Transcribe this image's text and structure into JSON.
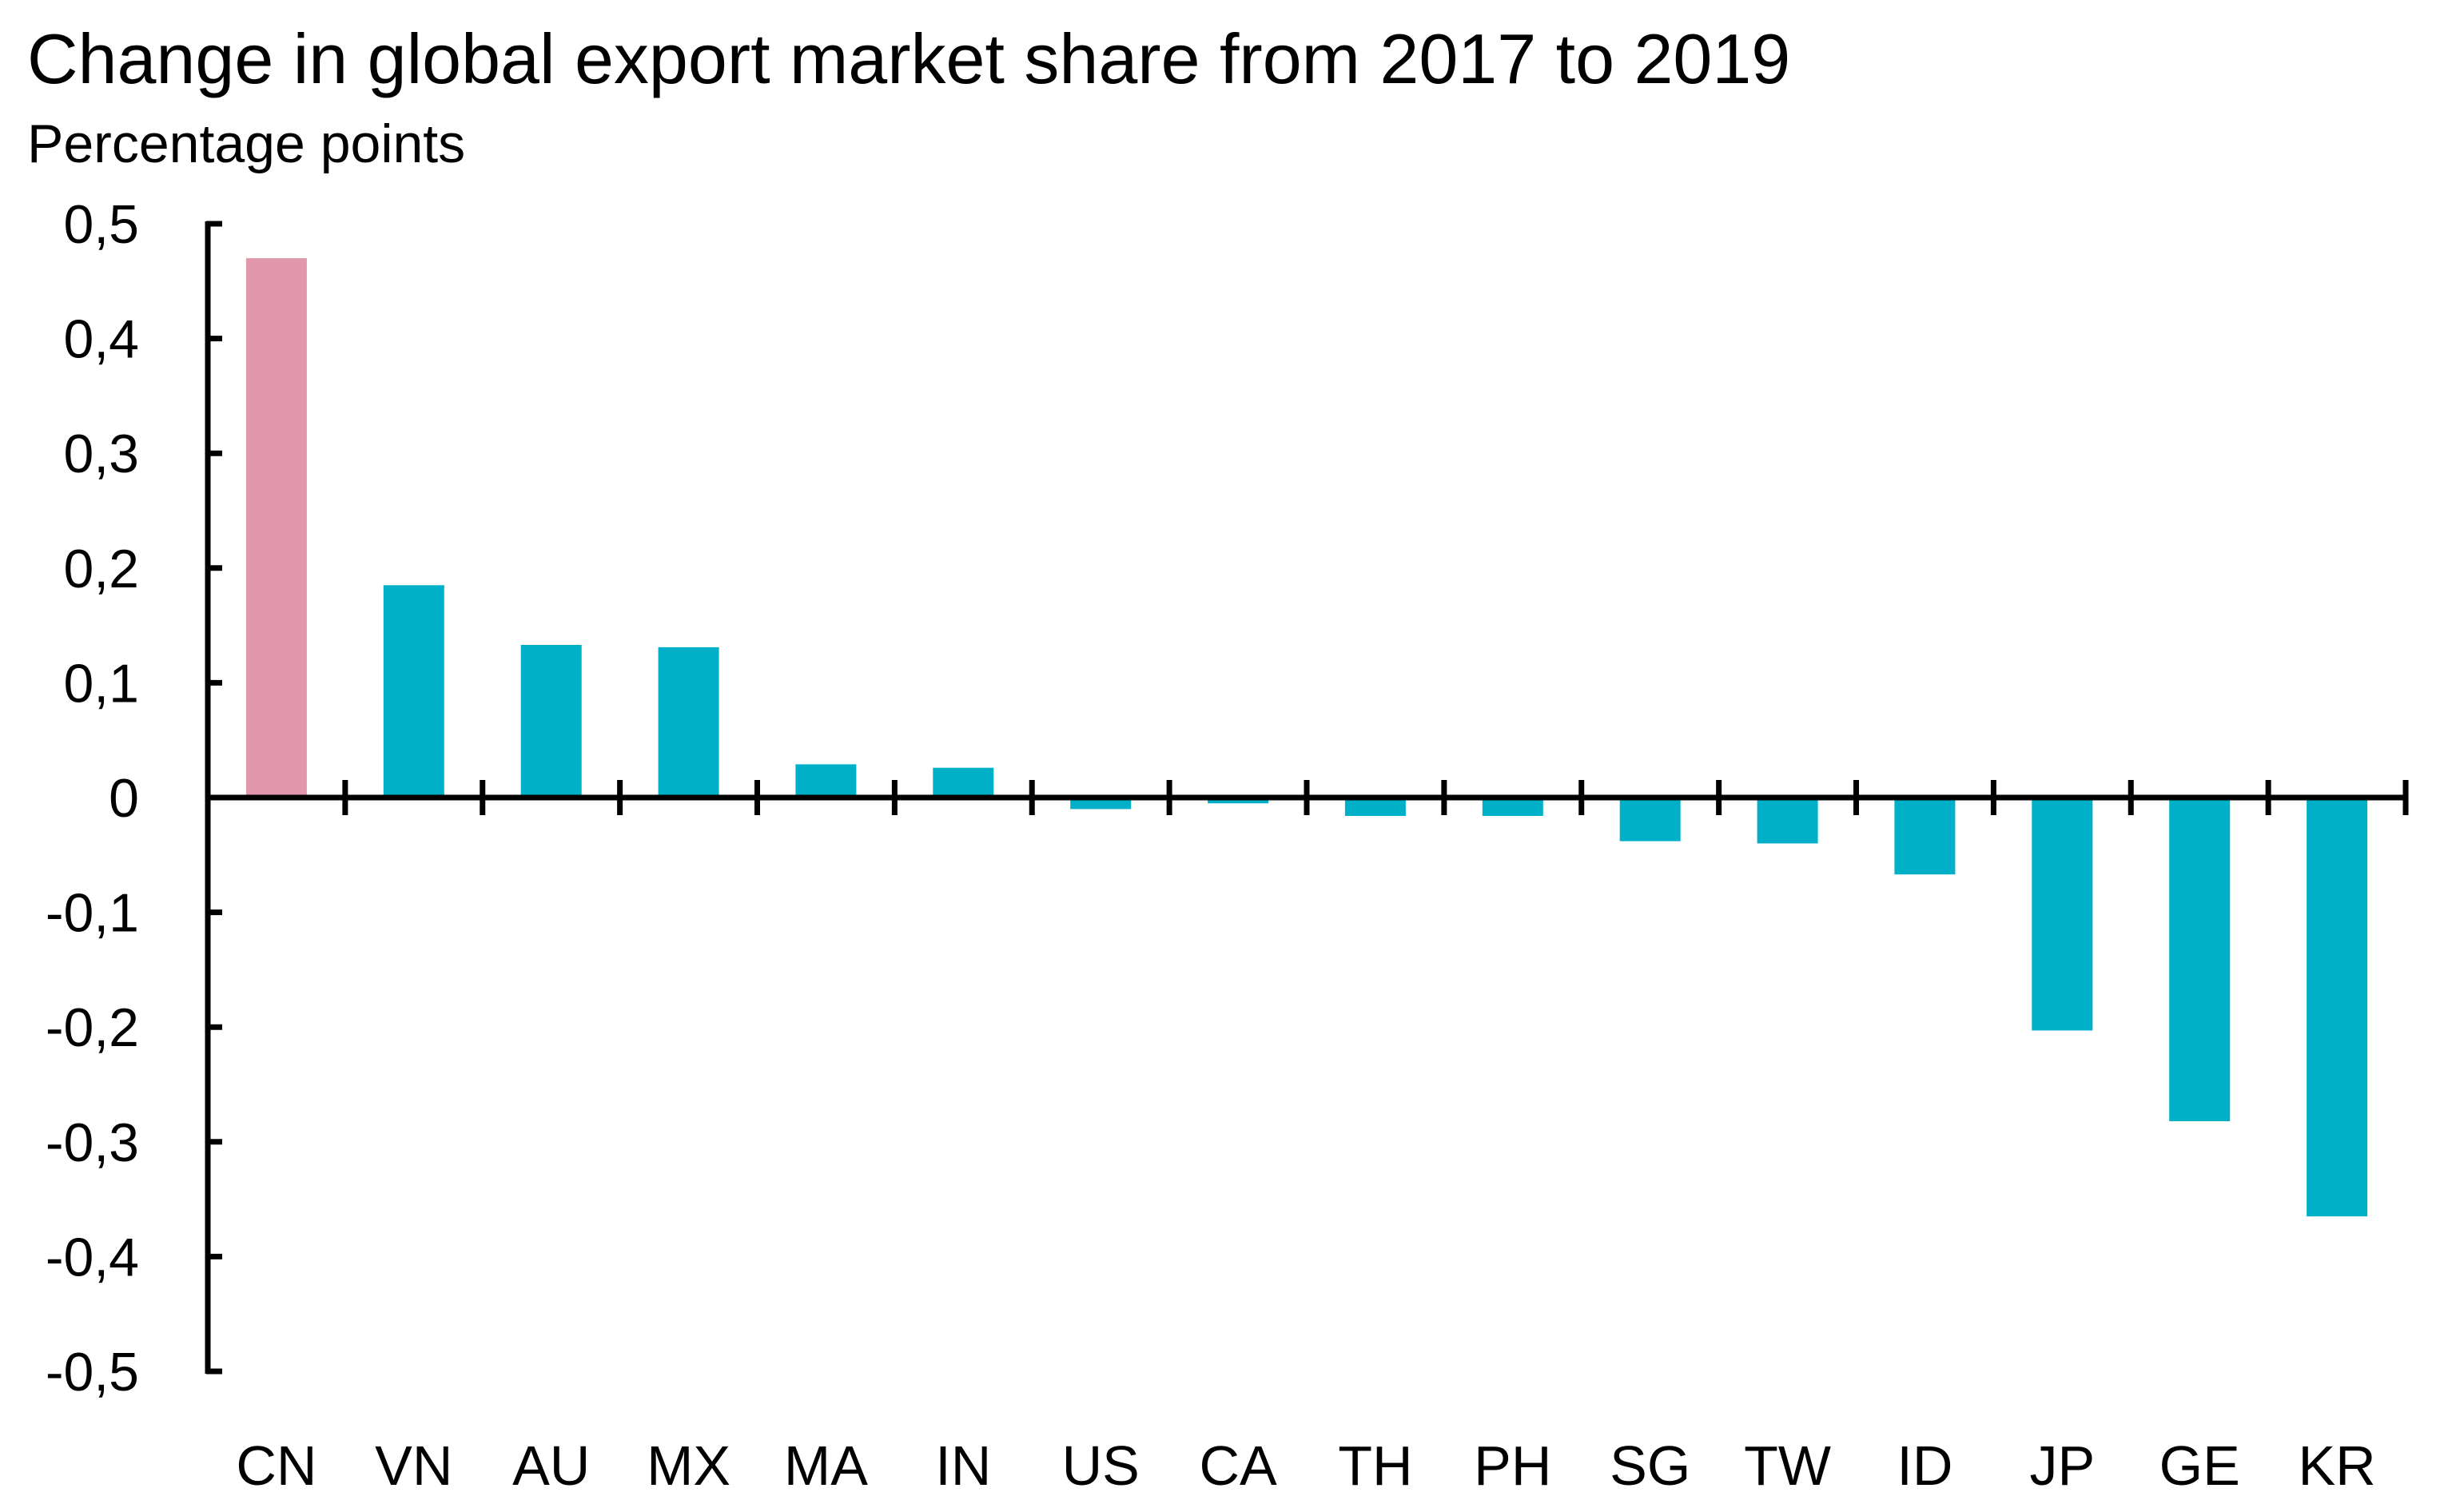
{
  "chart_data": {
    "type": "bar",
    "title": "Change in global export market share from 2017 to 2019",
    "subtitle": "Percentage points",
    "xlabel": "",
    "ylabel": "",
    "ylim": [
      -0.5,
      0.5
    ],
    "yticks": [
      0.5,
      0.4,
      0.3,
      0.2,
      0.1,
      0,
      -0.1,
      -0.2,
      -0.3,
      -0.4,
      -0.5
    ],
    "ytick_labels": [
      "0,5",
      "0,4",
      "0,3",
      "0,2",
      "0,1",
      "0",
      "-0,1",
      "-0,2",
      "-0,3",
      "-0,4",
      "-0,5"
    ],
    "categories": [
      "CN",
      "VN",
      "AU",
      "MX",
      "MA",
      "IN",
      "US",
      "CA",
      "TH",
      "PH",
      "SG",
      "TW",
      "ID",
      "JP",
      "GE",
      "KR"
    ],
    "values": [
      0.47,
      0.185,
      0.133,
      0.131,
      0.029,
      0.026,
      -0.01,
      -0.005,
      -0.016,
      -0.016,
      -0.038,
      -0.04,
      -0.067,
      -0.203,
      -0.282,
      -0.365
    ],
    "colors": [
      "#e298ac",
      "#00b0c8",
      "#00b0c8",
      "#00b0c8",
      "#00b0c8",
      "#00b0c8",
      "#00b0c8",
      "#00b0c8",
      "#00b0c8",
      "#00b0c8",
      "#00b0c8",
      "#00b0c8",
      "#00b0c8",
      "#00b0c8",
      "#00b0c8",
      "#00b0c8"
    ],
    "axis_color": "#000000",
    "grid": false,
    "legend": "none"
  }
}
